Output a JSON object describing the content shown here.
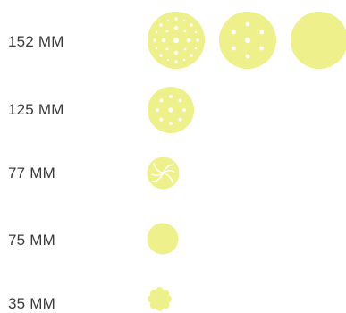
{
  "colors": {
    "disc_fill": "#EEF08C",
    "hole_fill": "#FFFFFF",
    "label_text": "#3A3A3A",
    "background": "#FFFFFF"
  },
  "rows": [
    {
      "label": "152 MM",
      "discs": [
        {
          "name": "disc-152mm-multi-hole-pattern",
          "pattern": "multi-hole"
        },
        {
          "name": "disc-152mm-seven-hole-pattern",
          "pattern": "seven-hole"
        },
        {
          "name": "disc-152mm-no-hole",
          "pattern": "solid"
        }
      ]
    },
    {
      "label": "125 MM",
      "discs": [
        {
          "name": "disc-125mm-eight-hole-pattern",
          "pattern": "eight-hole"
        }
      ]
    },
    {
      "label": "77 MM",
      "discs": [
        {
          "name": "disc-77mm-swirl-pattern",
          "pattern": "swirl"
        }
      ]
    },
    {
      "label": "75 MM",
      "discs": [
        {
          "name": "disc-75mm-no-hole",
          "pattern": "solid"
        }
      ]
    },
    {
      "label": "35 MM",
      "discs": [
        {
          "name": "disc-35mm-flower-shape",
          "pattern": "flower"
        }
      ]
    }
  ]
}
